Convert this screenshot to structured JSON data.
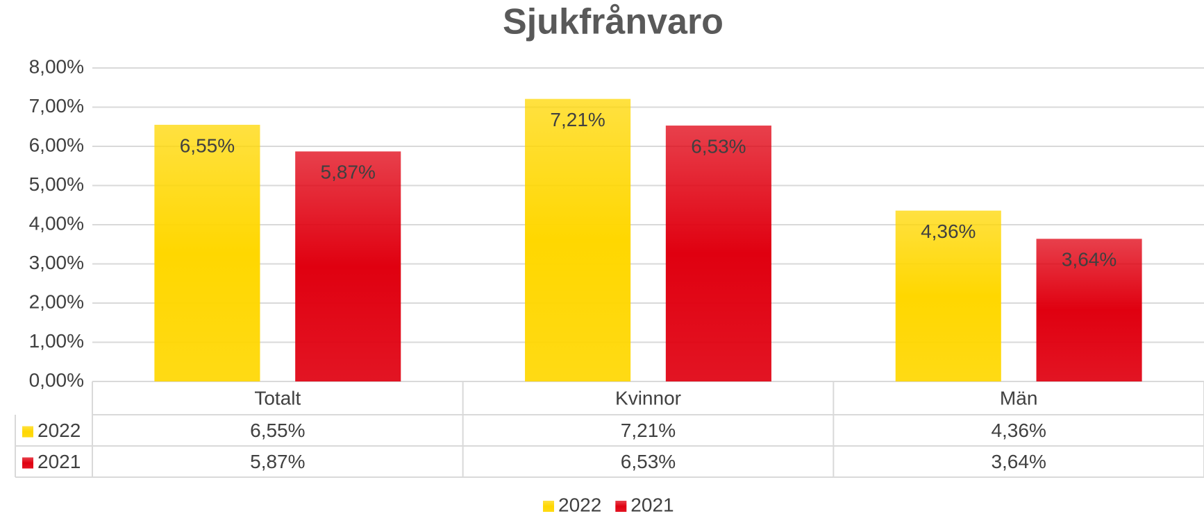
{
  "chart_data": {
    "type": "bar",
    "title": "Sjukfrånvaro",
    "categories": [
      "Totalt",
      "Kvinnor",
      "Män"
    ],
    "series": [
      {
        "name": "2022",
        "color": "#FFD700",
        "values": [
          6.55,
          7.21,
          4.36
        ],
        "value_labels": [
          "6,55%",
          "7,21%",
          "4,36%"
        ]
      },
      {
        "name": "2021",
        "color": "#E00010",
        "values": [
          5.87,
          6.53,
          3.64
        ],
        "value_labels": [
          "5,87%",
          "6,53%",
          "3,64%"
        ]
      }
    ],
    "ylim": [
      0,
      8
    ],
    "yticks": [
      {
        "value": 0,
        "label": "0,00%"
      },
      {
        "value": 1,
        "label": "1,00%"
      },
      {
        "value": 2,
        "label": "2,00%"
      },
      {
        "value": 3,
        "label": "3,00%"
      },
      {
        "value": 4,
        "label": "4,00%"
      },
      {
        "value": 5,
        "label": "5,00%"
      },
      {
        "value": 6,
        "label": "6,00%"
      },
      {
        "value": 7,
        "label": "7,00%"
      },
      {
        "value": 8,
        "label": "8,00%"
      }
    ],
    "grid": true,
    "data_table": true,
    "legend": "bottom"
  }
}
